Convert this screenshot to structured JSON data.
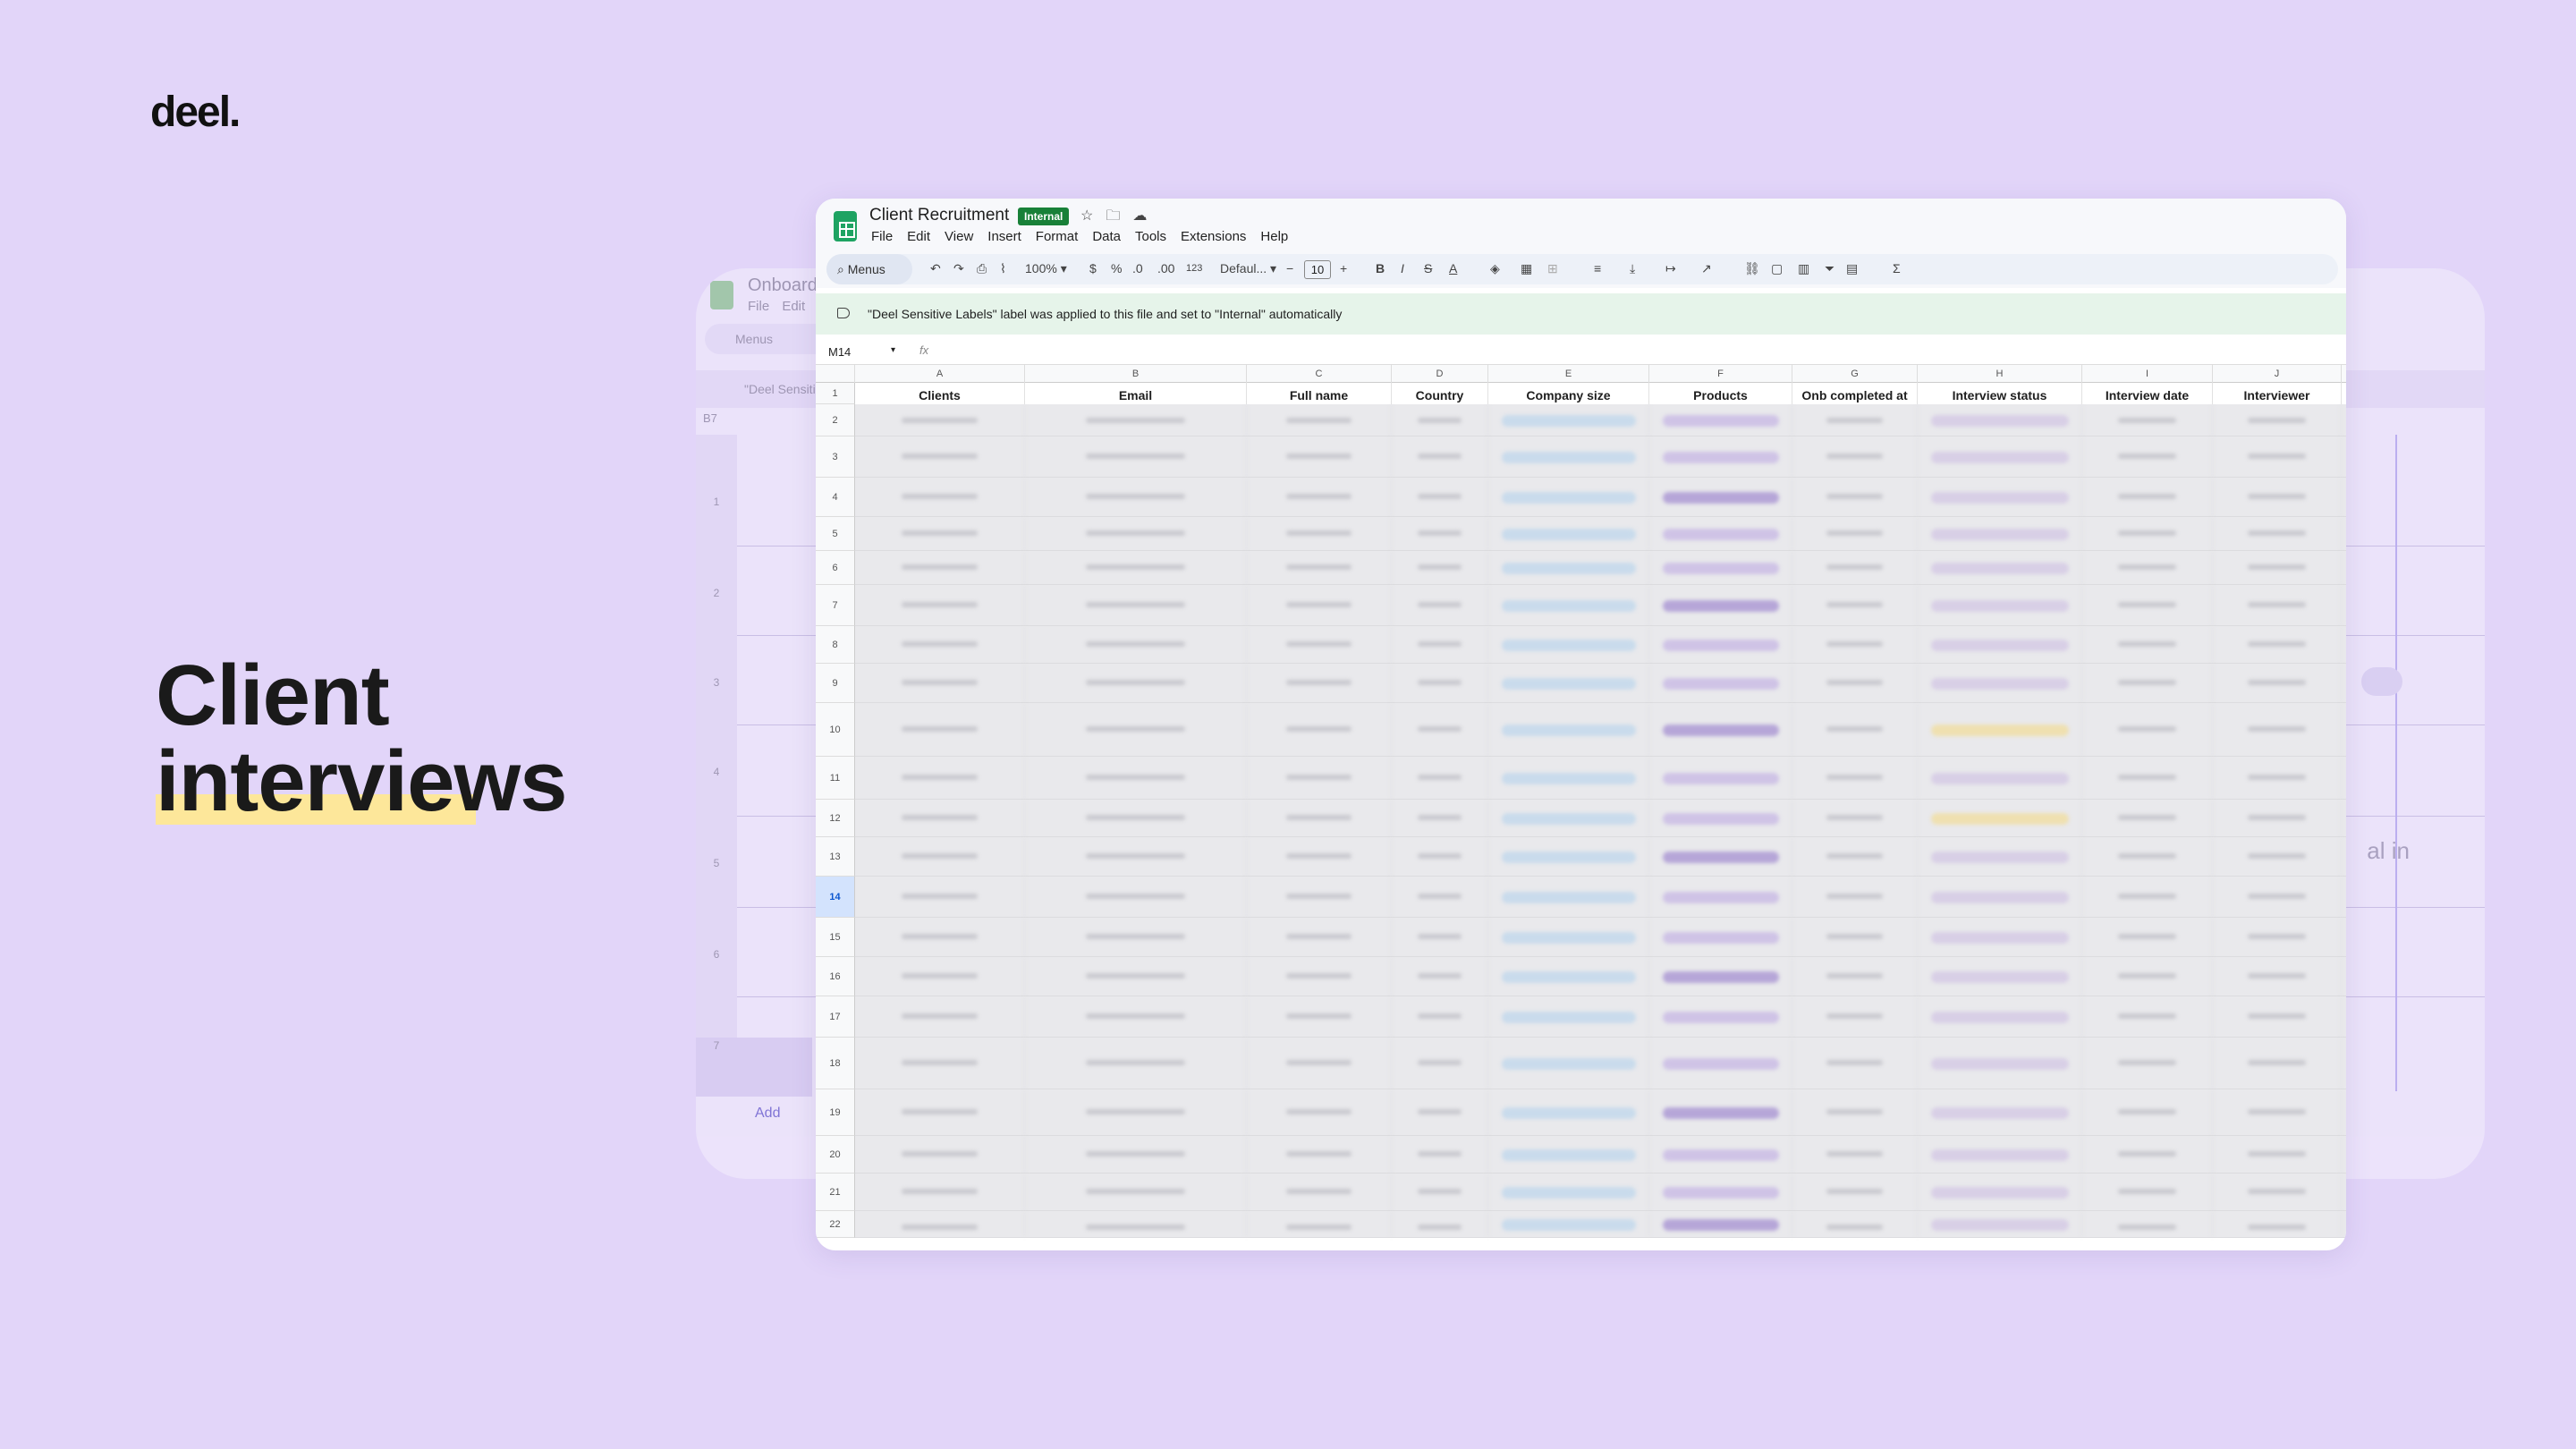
{
  "brand": {
    "logo_text": "deel."
  },
  "headline": {
    "line1": "Client",
    "line2": "interviews"
  },
  "back_window": {
    "title": "Onboardi",
    "menu": "File  Edit",
    "search": "Menus",
    "notice": "\"Deel Sensiti",
    "cell_ref": "B7",
    "row_numbers": [
      "1",
      "2",
      "3",
      "4",
      "5",
      "6",
      "7"
    ],
    "add_label": "Add",
    "partial_text": "al in"
  },
  "window": {
    "title": "Client Recruitment",
    "badge": "Internal",
    "menu": [
      "File",
      "Edit",
      "View",
      "Insert",
      "Format",
      "Data",
      "Tools",
      "Extensions",
      "Help"
    ],
    "toolbar": {
      "search": "Menus",
      "zoom": "100%",
      "currency": "$",
      "percent": "%",
      "dec_minus": ".0",
      "dec_plus": ".00",
      "number_format": "123",
      "font": "Defaul...",
      "font_size": "10"
    },
    "notice": "\"Deel Sensitive Labels\" label was applied to this file and set to \"Internal\" automatically",
    "cell_ref": "M14",
    "fx": "fx",
    "columns": [
      "A",
      "B",
      "C",
      "D",
      "E",
      "F",
      "G",
      "H",
      "I",
      "J"
    ],
    "headers": [
      "Clients",
      "Email",
      "Full name",
      "Country",
      "Company size",
      "Products",
      "Onb completed at",
      "Interview status",
      "Interview date",
      "Interviewer"
    ],
    "row_numbers": [
      "1",
      "2",
      "3",
      "4",
      "5",
      "6",
      "7",
      "8",
      "9",
      "10",
      "11",
      "12",
      "13",
      "14",
      "15",
      "16",
      "17",
      "18",
      "19",
      "20",
      "21",
      "22"
    ],
    "selected_row": "14"
  },
  "colors": {
    "background": "#e2d5f9",
    "highlight": "#fde79a",
    "sheets_green": "#1ea362",
    "badge_green": "#188038"
  }
}
